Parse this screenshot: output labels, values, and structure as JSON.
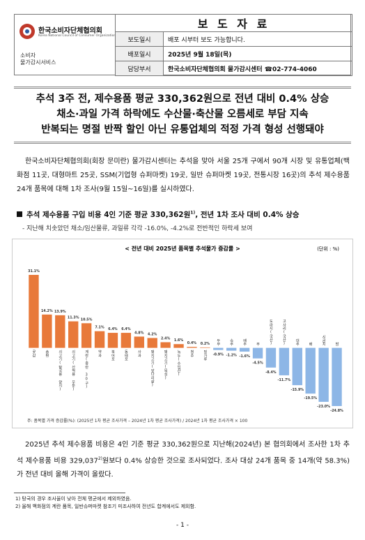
{
  "header": {
    "org_name": "한국소비자단체협의회",
    "org_name_en": "Korea National Council of Consumer Organizations",
    "service": [
      "소비자",
      "물가감시서비스"
    ],
    "title": "보 도 자 료",
    "rows": [
      [
        "보도일시",
        "배포 시부터 보도 가능합니다."
      ],
      [
        "배포일시",
        "2025년 9월 18일(목)"
      ],
      [
        "담당부서",
        "한국소비자단체협의회 물가감시센터 ☎02-774-4060"
      ]
    ]
  },
  "headline": [
    "추석 3주 전, 제수용품 평균 330,362원으로 전년 대비 0.4% 상승",
    "채소·과일 가격 하락에도 수산물·축산물 오름세로 부담 지속",
    "반복되는 명절 반짝 할인 아닌 유통업체의 적정 가격 형성 선행돼야"
  ],
  "intro": "한국소비자단체협의회(회장 문미란) 물가감시센터는 추석을 맞아 서울 25개 구에서 90개 시장 및 유통업체(백화점 11곳, 대형마트 25곳, SSM(기업형 슈퍼마켓) 19곳, 일반 슈퍼마켓 19곳, 전통시장 16곳)의 추석 제수용품 24개 품목에 대해 1차 조사(9월 15일~16일)를 실시하였다.",
  "section": {
    "heading": [
      "추석 제수용품 구입 비용 4인 기준 평균 330,362원",
      "1)",
      ", 전년 1차 조사 대비 0.4% 상승"
    ],
    "sub": "- 지난해 치솟았던 채소/임산물류, 과일류 각각 -16.0%, -4.2%로 전반적인 하락세 보여"
  },
  "chart_data": {
    "type": "bar",
    "title": "< 전년 대비 2025년 품목별 추석물가 증감률 >",
    "unit": "(단위 : %)",
    "categories": [
      "곶감",
      "송편",
      "쇠고기(탕국용 양지)",
      "쇠고기(산적용 우둔)",
      "계란(중란 30구)",
      "약과",
      "북어포",
      "동태포",
      "사과",
      "돼지고기(앞다리살)",
      "돼지고기(목심)",
      "녹두(수입산)",
      "청주",
      "밀가루",
      "두부",
      "숙주",
      "배추",
      "무",
      "도라지(국산)",
      "고사리(국산)",
      "대추",
      "배",
      "시금치",
      "밤"
    ],
    "values": [
      31.1,
      14.2,
      13.9,
      11.3,
      10.5,
      7.1,
      6.4,
      6.4,
      4.8,
      4.2,
      2.4,
      1.6,
      0.4,
      0.2,
      -0.9,
      -1.2,
      -1.6,
      -4.5,
      -8.4,
      -11.7,
      -15.9,
      -19.5,
      -23.0,
      -24.8
    ],
    "value_labels": [
      "31.1%",
      "14.2%",
      "13.9%",
      "11.3%",
      "10.5%",
      "7.1%",
      "6.4%",
      "6.4%",
      "4.8%",
      "4.2%",
      "2.4%",
      "1.6%",
      "0.4%",
      "0.2%",
      "-0.9%",
      "-1.2%",
      "-1.6%",
      "-4.5%",
      "-8.4%",
      "-11.7%",
      "-15.9%",
      "-19.5%",
      "-23.0%",
      "-24.8%"
    ],
    "color": "#e8793a",
    "negative_color": "#8db6e6",
    "note": "주: 품목별 가격 증감률(%): (2025년 1차 평균 조사가격 – 2024년 1차 평균 조사가격) / 2024년 1차 평균 조사가격 × 100"
  },
  "body": [
    "2025년 추석 제수용품 비용은 4인 기준 평균 330,362원으로 지난해(2024년) 본 협의회에서 조사한 1차 추석 제수용품 비용 329,037",
    "2)",
    "원보다 0.4% 상승한 것으로 조사되었다. 조사 대상 24개 품목 중 14개(약 58.3%)가 전년 대비 올해 가격이 올랐다."
  ],
  "footnotes": [
    "1) 탕국의 경우 조사율이 낮아 전체 평균에서 제외하였음.",
    "2) 올해 백화점의 계란 품목, 일반슈퍼마켓 참조기 미조사하여 전년도 합계에서도 제외함."
  ],
  "page": "- 1 -"
}
